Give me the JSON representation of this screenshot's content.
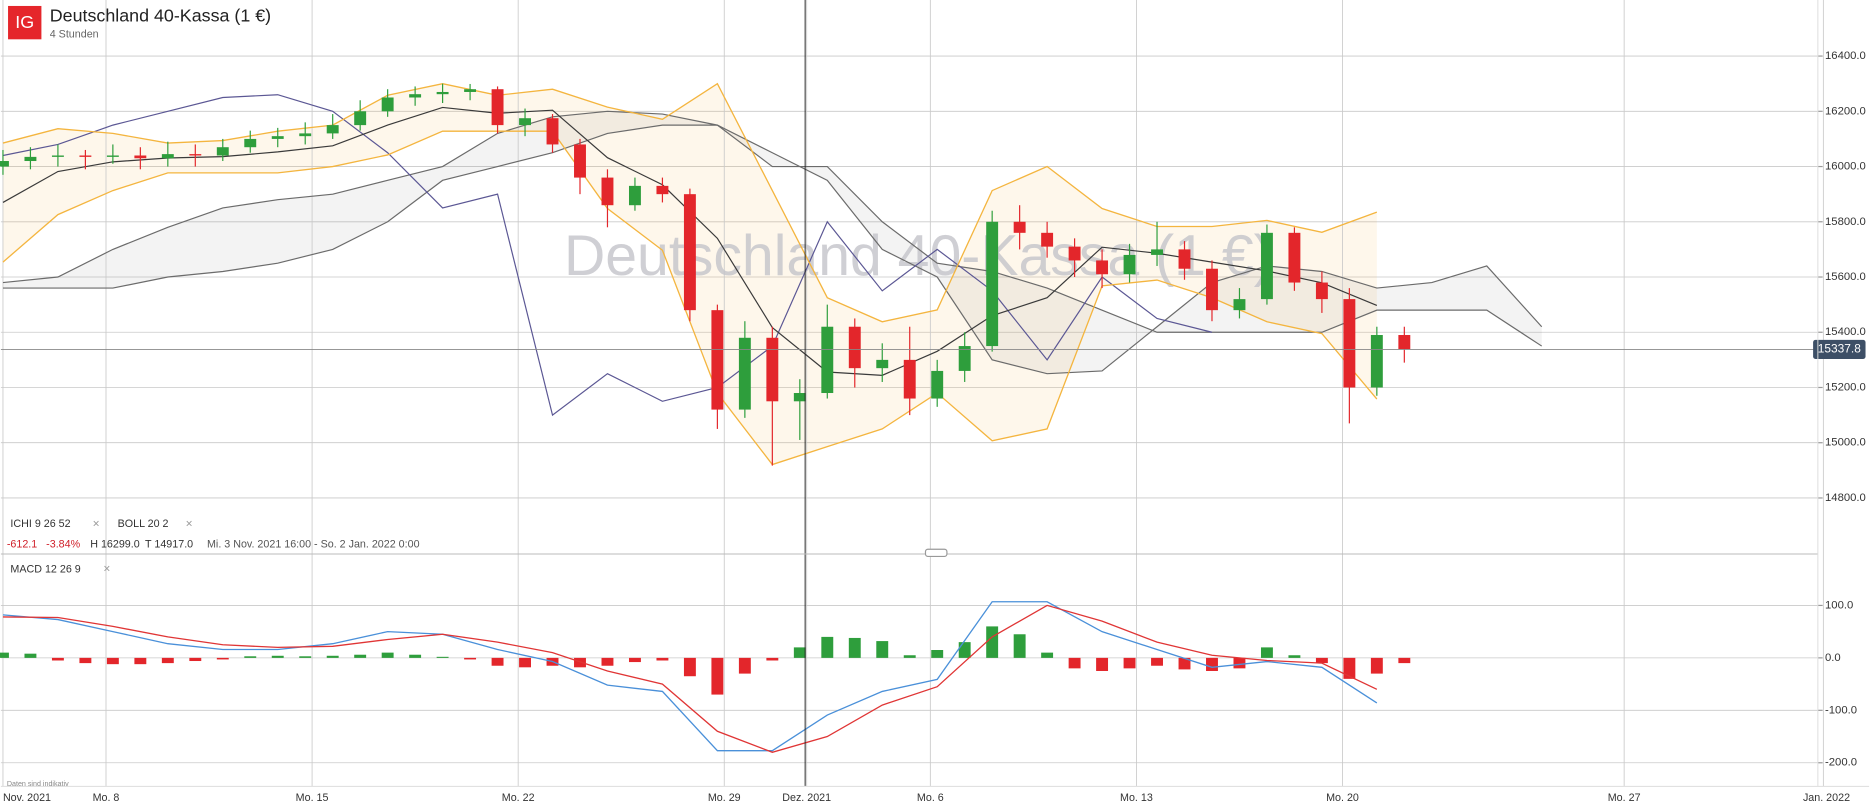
{
  "header": {
    "logo": "IG",
    "title": "Deutschland 40-Kassa (1 €)",
    "subtitle": "4 Stunden"
  },
  "info": {
    "ichi": "ICHI 9 26 52",
    "boll": "BOLL 20 2",
    "change": -612.1,
    "change_pct": "-3.84%",
    "high": "H 16299.0",
    "low": "T 14917.0",
    "range": "Mi. 3 Nov. 2021 16:00 - So. 2 Jan. 2022 0:00",
    "macd": "MACD 12 26 9"
  },
  "footnote": "Daten sind indikativ",
  "chart_data": [
    {
      "type": "candlestick",
      "x": [
        -15,
        -11,
        -7,
        -3,
        1,
        5,
        9,
        13,
        17,
        21,
        25,
        29,
        33,
        37,
        41,
        45,
        49,
        53,
        57,
        61,
        65,
        69,
        73,
        77,
        81,
        85,
        89,
        93,
        97,
        101,
        105,
        109,
        113,
        117,
        121,
        125,
        129,
        133,
        137,
        141,
        145,
        149,
        153,
        157,
        161,
        165,
        169,
        173,
        177,
        181,
        185,
        189
      ],
      "candles": {
        "open": [
          16000,
          16020,
          16035,
          16040,
          16035,
          16040,
          16030,
          16045,
          16040,
          16070,
          16100,
          16110,
          16120,
          16150,
          16200,
          16250,
          16262,
          16270,
          16280,
          16150,
          16175,
          16080,
          15960,
          15860,
          15930,
          15900,
          15480,
          15120,
          15380,
          15150,
          15180,
          15420,
          15270,
          15300,
          15160,
          15260,
          15350,
          15800,
          15760,
          15710,
          15660,
          15610,
          15680,
          15700,
          15630,
          15480,
          15520,
          15760,
          15580,
          15520,
          15200,
          15390
        ],
        "high": [
          16060,
          16070,
          16080,
          16060,
          16080,
          16070,
          16090,
          16080,
          16100,
          16130,
          16140,
          16160,
          16190,
          16240,
          16280,
          16290,
          16300,
          16299,
          16290,
          16210,
          16190,
          16100,
          15990,
          15960,
          15960,
          15920,
          15500,
          15440,
          15420,
          15230,
          15500,
          15450,
          15360,
          15420,
          15300,
          15400,
          15840,
          15860,
          15800,
          15740,
          15700,
          15720,
          15800,
          15730,
          15660,
          15560,
          15790,
          15780,
          15620,
          15560,
          15420,
          15420
        ],
        "low": [
          15970,
          15990,
          16000,
          15990,
          16010,
          15990,
          16000,
          16000,
          16020,
          16050,
          16070,
          16080,
          16100,
          16130,
          16180,
          16220,
          16230,
          16240,
          16120,
          16110,
          16050,
          15900,
          15780,
          15840,
          15870,
          15440,
          15050,
          15090,
          14917,
          15010,
          15160,
          15200,
          15220,
          15100,
          15130,
          15220,
          15330,
          15700,
          15670,
          15600,
          15560,
          15580,
          15640,
          15590,
          15440,
          15450,
          15500,
          15550,
          15470,
          15070,
          15170,
          15290
        ],
        "close": [
          16020,
          16035,
          16040,
          16035,
          16040,
          16030,
          16045,
          16040,
          16070,
          16100,
          16110,
          16120,
          16150,
          16200,
          16250,
          16262,
          16270,
          16280,
          16150,
          16175,
          16080,
          15960,
          15860,
          15930,
          15900,
          15480,
          15120,
          15380,
          15150,
          15180,
          15420,
          15270,
          15300,
          15160,
          15260,
          15350,
          15800,
          15760,
          15710,
          15660,
          15610,
          15680,
          15700,
          15630,
          15480,
          15520,
          15760,
          15580,
          15520,
          15200,
          15390,
          15338
        ]
      },
      "up_color": "#2e9e3c",
      "down_color": "#e3262b",
      "bands_x": [
        -15,
        -7,
        1,
        9,
        17,
        25,
        33,
        41,
        49,
        57,
        65,
        73,
        81,
        89,
        97,
        105,
        113,
        121,
        129,
        137,
        145,
        153,
        161,
        169,
        177,
        185
      ],
      "boll_upper": [
        16085,
        16137,
        16120,
        16085,
        16094,
        16128,
        16150,
        16258,
        16300,
        16258,
        16280,
        16215,
        16171,
        16300,
        15913,
        15525,
        15438,
        15481,
        15913,
        16000,
        15848,
        15783,
        15783,
        15805,
        15762,
        15835
      ],
      "boll_lower": [
        15654,
        15826,
        15913,
        15977,
        15977,
        15977,
        16000,
        16042,
        16128,
        16128,
        16128,
        15848,
        15697,
        15180,
        14921,
        14986,
        15050,
        15180,
        15007,
        15050,
        15568,
        15589,
        15525,
        15438,
        15395,
        15158
      ],
      "boll_mid": [
        15870,
        15982,
        16017,
        16031,
        16036,
        16053,
        16075,
        16150,
        16214,
        16193,
        16204,
        16032,
        15934,
        15740,
        15417,
        15256,
        15244,
        15331,
        15460,
        15525,
        15708,
        15686,
        15654,
        15622,
        15579,
        15497
      ],
      "boll_color": "#f4b53f",
      "mid_color": "#3a3a3a",
      "cloud_x": [
        -15,
        -7,
        1,
        9,
        17,
        25,
        33,
        41,
        49,
        57,
        65,
        73,
        81,
        89,
        97,
        105,
        113,
        121,
        129,
        137,
        145,
        153,
        161,
        169,
        177,
        185,
        193,
        201,
        209
      ],
      "span_a": [
        15580,
        15600,
        15700,
        15780,
        15850,
        15880,
        15900,
        15950,
        16000,
        16120,
        16180,
        16200,
        16190,
        16150,
        16050,
        15950,
        15700,
        15600,
        15300,
        15250,
        15260,
        15420,
        15580,
        15640,
        15620,
        15560,
        15580,
        15640,
        15420
      ],
      "span_b": [
        15560,
        15560,
        15560,
        15600,
        15620,
        15650,
        15700,
        15800,
        15950,
        16000,
        16050,
        16120,
        16150,
        16150,
        16000,
        16000,
        15800,
        15650,
        15620,
        15560,
        15480,
        15400,
        15400,
        15400,
        15400,
        15480,
        15480,
        15480,
        15350
      ],
      "cloud_color": "#6b6b6b",
      "lag_x": [
        -15,
        -7,
        1,
        9,
        17,
        25,
        33,
        41,
        49,
        57,
        65,
        73,
        81,
        89,
        97,
        105,
        113,
        121,
        129,
        137,
        145,
        153,
        161
      ],
      "lag": [
        16040,
        16080,
        16150,
        16200,
        16250,
        16260,
        16200,
        16050,
        15850,
        15900,
        15100,
        15250,
        15150,
        15200,
        15350,
        15800,
        15550,
        15700,
        15550,
        15300,
        15600,
        15450,
        15400
      ],
      "lag_color": "#5b5794",
      "last_price": 15337.8,
      "xlim": [
        -15.3,
        249.2
      ],
      "ylim": [
        14748,
        16603
      ],
      "yticks": [
        {
          "value": 14800,
          "label": "14800.0"
        },
        {
          "value": 15000,
          "label": "15000.0"
        },
        {
          "value": 15200,
          "label": "15200.0"
        },
        {
          "value": 15400,
          "label": "15400.0"
        },
        {
          "value": 15600,
          "label": "15600.0"
        },
        {
          "value": 15800,
          "label": "15800.0"
        },
        {
          "value": 16000,
          "label": "16000.0"
        },
        {
          "value": 16200,
          "label": "16200.0"
        },
        {
          "value": 16400,
          "label": "16400.0"
        }
      ]
    },
    {
      "type": "macd",
      "line_x": [
        -15,
        -7,
        1,
        9,
        17,
        25,
        33,
        41,
        49,
        57,
        65,
        73,
        81,
        89,
        97,
        105,
        113,
        121,
        129,
        137,
        145,
        153,
        161,
        169,
        177,
        185
      ],
      "macd": [
        82,
        73,
        50,
        27,
        16,
        16,
        27,
        50,
        45,
        16,
        -7,
        -52,
        -64,
        -177,
        -177,
        -109,
        -64,
        -41,
        107,
        107,
        50,
        16,
        -18,
        -7,
        -18,
        -86
      ],
      "signal": [
        78,
        77,
        60,
        40,
        25,
        20,
        22,
        35,
        45,
        30,
        10,
        -25,
        -50,
        -140,
        -180,
        -150,
        -90,
        -55,
        40,
        100,
        70,
        30,
        5,
        -5,
        -10,
        -60
      ],
      "macd_color": "#4a90d9",
      "signal_color": "#e03535",
      "hist_x": [
        -15,
        -11,
        -7,
        -3,
        1,
        5,
        9,
        13,
        17,
        21,
        25,
        29,
        33,
        37,
        41,
        45,
        49,
        53,
        57,
        61,
        65,
        69,
        73,
        77,
        81,
        85,
        89,
        93,
        97,
        101,
        105,
        109,
        113,
        117,
        121,
        125,
        129,
        133,
        137,
        141,
        145,
        149,
        153,
        157,
        161,
        165,
        169,
        173,
        177,
        181,
        185,
        189
      ],
      "histogram": [
        10,
        8,
        -5,
        -10,
        -12,
        -12,
        -10,
        -6,
        -3,
        3,
        4,
        3,
        4,
        6,
        10,
        6,
        2,
        -3,
        -15,
        -18,
        -15,
        -18,
        -15,
        -8,
        -5,
        -35,
        -70,
        -30,
        -5,
        20,
        40,
        38,
        32,
        5,
        15,
        30,
        60,
        45,
        10,
        -20,
        -25,
        -20,
        -15,
        -22,
        -25,
        -20,
        20,
        5,
        -10,
        -40,
        -30,
        -10
      ],
      "xlim": [
        -15.3,
        249.2
      ],
      "ylim": [
        -245,
        198
      ],
      "yticks": [
        {
          "value": -200,
          "label": "-200.0"
        },
        {
          "value": -100,
          "label": "-100.0"
        },
        {
          "value": 0,
          "label": "0.0"
        },
        {
          "value": 100,
          "label": "100.0"
        }
      ],
      "xticks": [
        {
          "value": -15,
          "label": "Nov. 2021"
        },
        {
          "value": 0,
          "label": "Mo. 8"
        },
        {
          "value": 30,
          "label": "Mo. 15"
        },
        {
          "value": 60,
          "label": "Mo. 22"
        },
        {
          "value": 90,
          "label": "Mo. 29"
        },
        {
          "value": 102,
          "label": "Dez. 2021"
        },
        {
          "value": 120,
          "label": "Mo. 6"
        },
        {
          "value": 150,
          "label": "Mo. 13"
        },
        {
          "value": 180,
          "label": "Mo. 20"
        },
        {
          "value": 221,
          "label": "Mo. 27"
        },
        {
          "value": 250,
          "label": "Jan. 2022"
        }
      ]
    }
  ]
}
